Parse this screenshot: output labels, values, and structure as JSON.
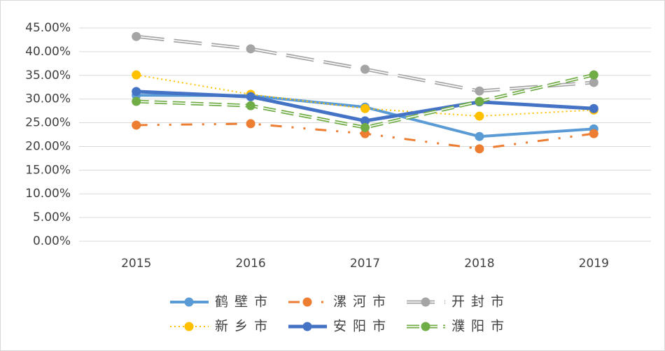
{
  "chart_data": {
    "type": "line",
    "categories": [
      "2015",
      "2016",
      "2017",
      "2018",
      "2019"
    ],
    "ylim": [
      0,
      45
    ],
    "yticks": [
      {
        "value": 0,
        "label": "0.00%"
      },
      {
        "value": 5,
        "label": "5.00%"
      },
      {
        "value": 10,
        "label": "10.00%"
      },
      {
        "value": 15,
        "label": "15.00%"
      },
      {
        "value": 20,
        "label": "20.00%"
      },
      {
        "value": 25,
        "label": "25.00%"
      },
      {
        "value": 30,
        "label": "30.00%"
      },
      {
        "value": 35,
        "label": "35.00%"
      },
      {
        "value": 40,
        "label": "40.00%"
      },
      {
        "value": 45,
        "label": "45.00%"
      }
    ],
    "grid": true,
    "legend": "bottom",
    "series": [
      {
        "name": "鹤壁市",
        "color": "#5b9bd5",
        "style": "solid",
        "values": [
          30.8,
          30.7,
          28.3,
          22.1,
          23.7
        ]
      },
      {
        "name": "漯河市",
        "color": "#ed7d31",
        "style": "dashdot",
        "values": [
          24.5,
          24.8,
          22.7,
          19.5,
          22.7
        ]
      },
      {
        "name": "开封市",
        "color": "#a5a5a5",
        "style": "double-longdash",
        "values": [
          43.2,
          40.6,
          36.3,
          31.7,
          33.5
        ]
      },
      {
        "name": "新乡市",
        "color": "#ffc000",
        "style": "dotted",
        "values": [
          35.1,
          31.0,
          28.0,
          26.4,
          27.7
        ]
      },
      {
        "name": "安阳市",
        "color": "#4472c4",
        "style": "thick",
        "values": [
          31.6,
          30.5,
          25.4,
          29.4,
          28.0
        ]
      },
      {
        "name": "濮阳市",
        "color": "#70ad47",
        "style": "double-dash",
        "values": [
          29.5,
          28.6,
          24.0,
          29.5,
          35.1
        ]
      }
    ]
  }
}
